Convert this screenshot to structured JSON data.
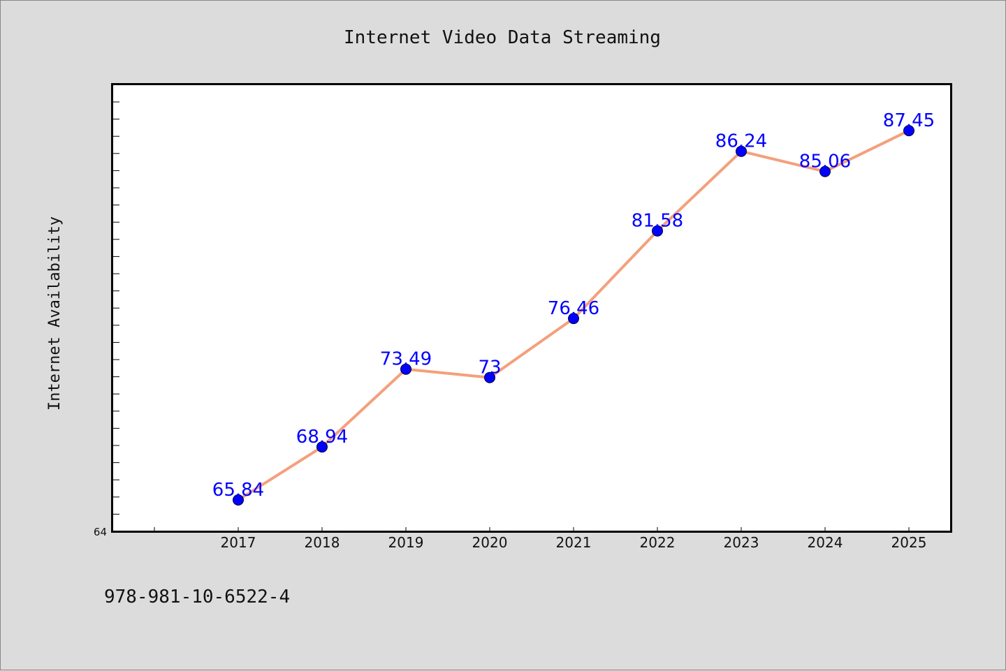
{
  "chart_data": {
    "type": "line",
    "title": "Internet Video Data Streaming",
    "xlabel": "",
    "ylabel": "Internet Availability",
    "categories": [
      "2017",
      "2018",
      "2019",
      "2020",
      "2021",
      "2022",
      "2023",
      "2024",
      "2025"
    ],
    "series": [
      {
        "values": [
          65.84,
          68.94,
          73.49,
          73,
          76.46,
          81.58,
          86.24,
          85.06,
          87.45
        ],
        "data_labels": [
          "65.84",
          "68.94",
          "73.49",
          "73",
          "76.46",
          "81.58",
          "86.24",
          "85.06",
          "87.45"
        ],
        "line_color": "#f4a07c",
        "marker_color": "#0000ff",
        "label_color": "#0000ff"
      }
    ],
    "y_min_label": "64",
    "ylim": [
      64,
      90
    ],
    "grid": false,
    "legend": "none"
  },
  "footer": {
    "text": "978-981-10-6522-4"
  },
  "colors": {
    "background": "#dcdcdc",
    "plot_background": "#ffffff",
    "axis": "#000000"
  }
}
